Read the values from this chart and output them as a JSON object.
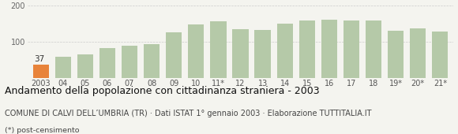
{
  "categories": [
    "2003",
    "04",
    "05",
    "06",
    "07",
    "08",
    "09",
    "10",
    "11*",
    "12",
    "13",
    "14",
    "15",
    "16",
    "17",
    "18",
    "19*",
    "20*",
    "21*"
  ],
  "values": [
    37,
    58,
    65,
    82,
    88,
    92,
    125,
    148,
    155,
    135,
    133,
    150,
    158,
    160,
    158,
    158,
    130,
    137,
    128
  ],
  "bar_color_default": "#b5c9a8",
  "bar_color_highlight": "#e8833a",
  "highlight_index": 0,
  "highlight_label": "37",
  "ylim": [
    0,
    200
  ],
  "yticks": [
    0,
    100,
    200
  ],
  "title": "Andamento della popolazione con cittadinanza straniera - 2003",
  "subtitle": "COMUNE DI CALVI DELL’UMBRIA (TR) · Dati ISTAT 1° gennaio 2003 · Elaborazione TUTTITALIA.IT",
  "footnote": "(*) post-censimento",
  "background_color": "#f4f4ef",
  "grid_color": "#cccccc",
  "title_fontsize": 9.0,
  "subtitle_fontsize": 7.0,
  "footnote_fontsize": 6.8,
  "tick_fontsize": 7.0,
  "label_fontsize": 7.5,
  "fig_width": 5.8,
  "fig_height": 1.7
}
